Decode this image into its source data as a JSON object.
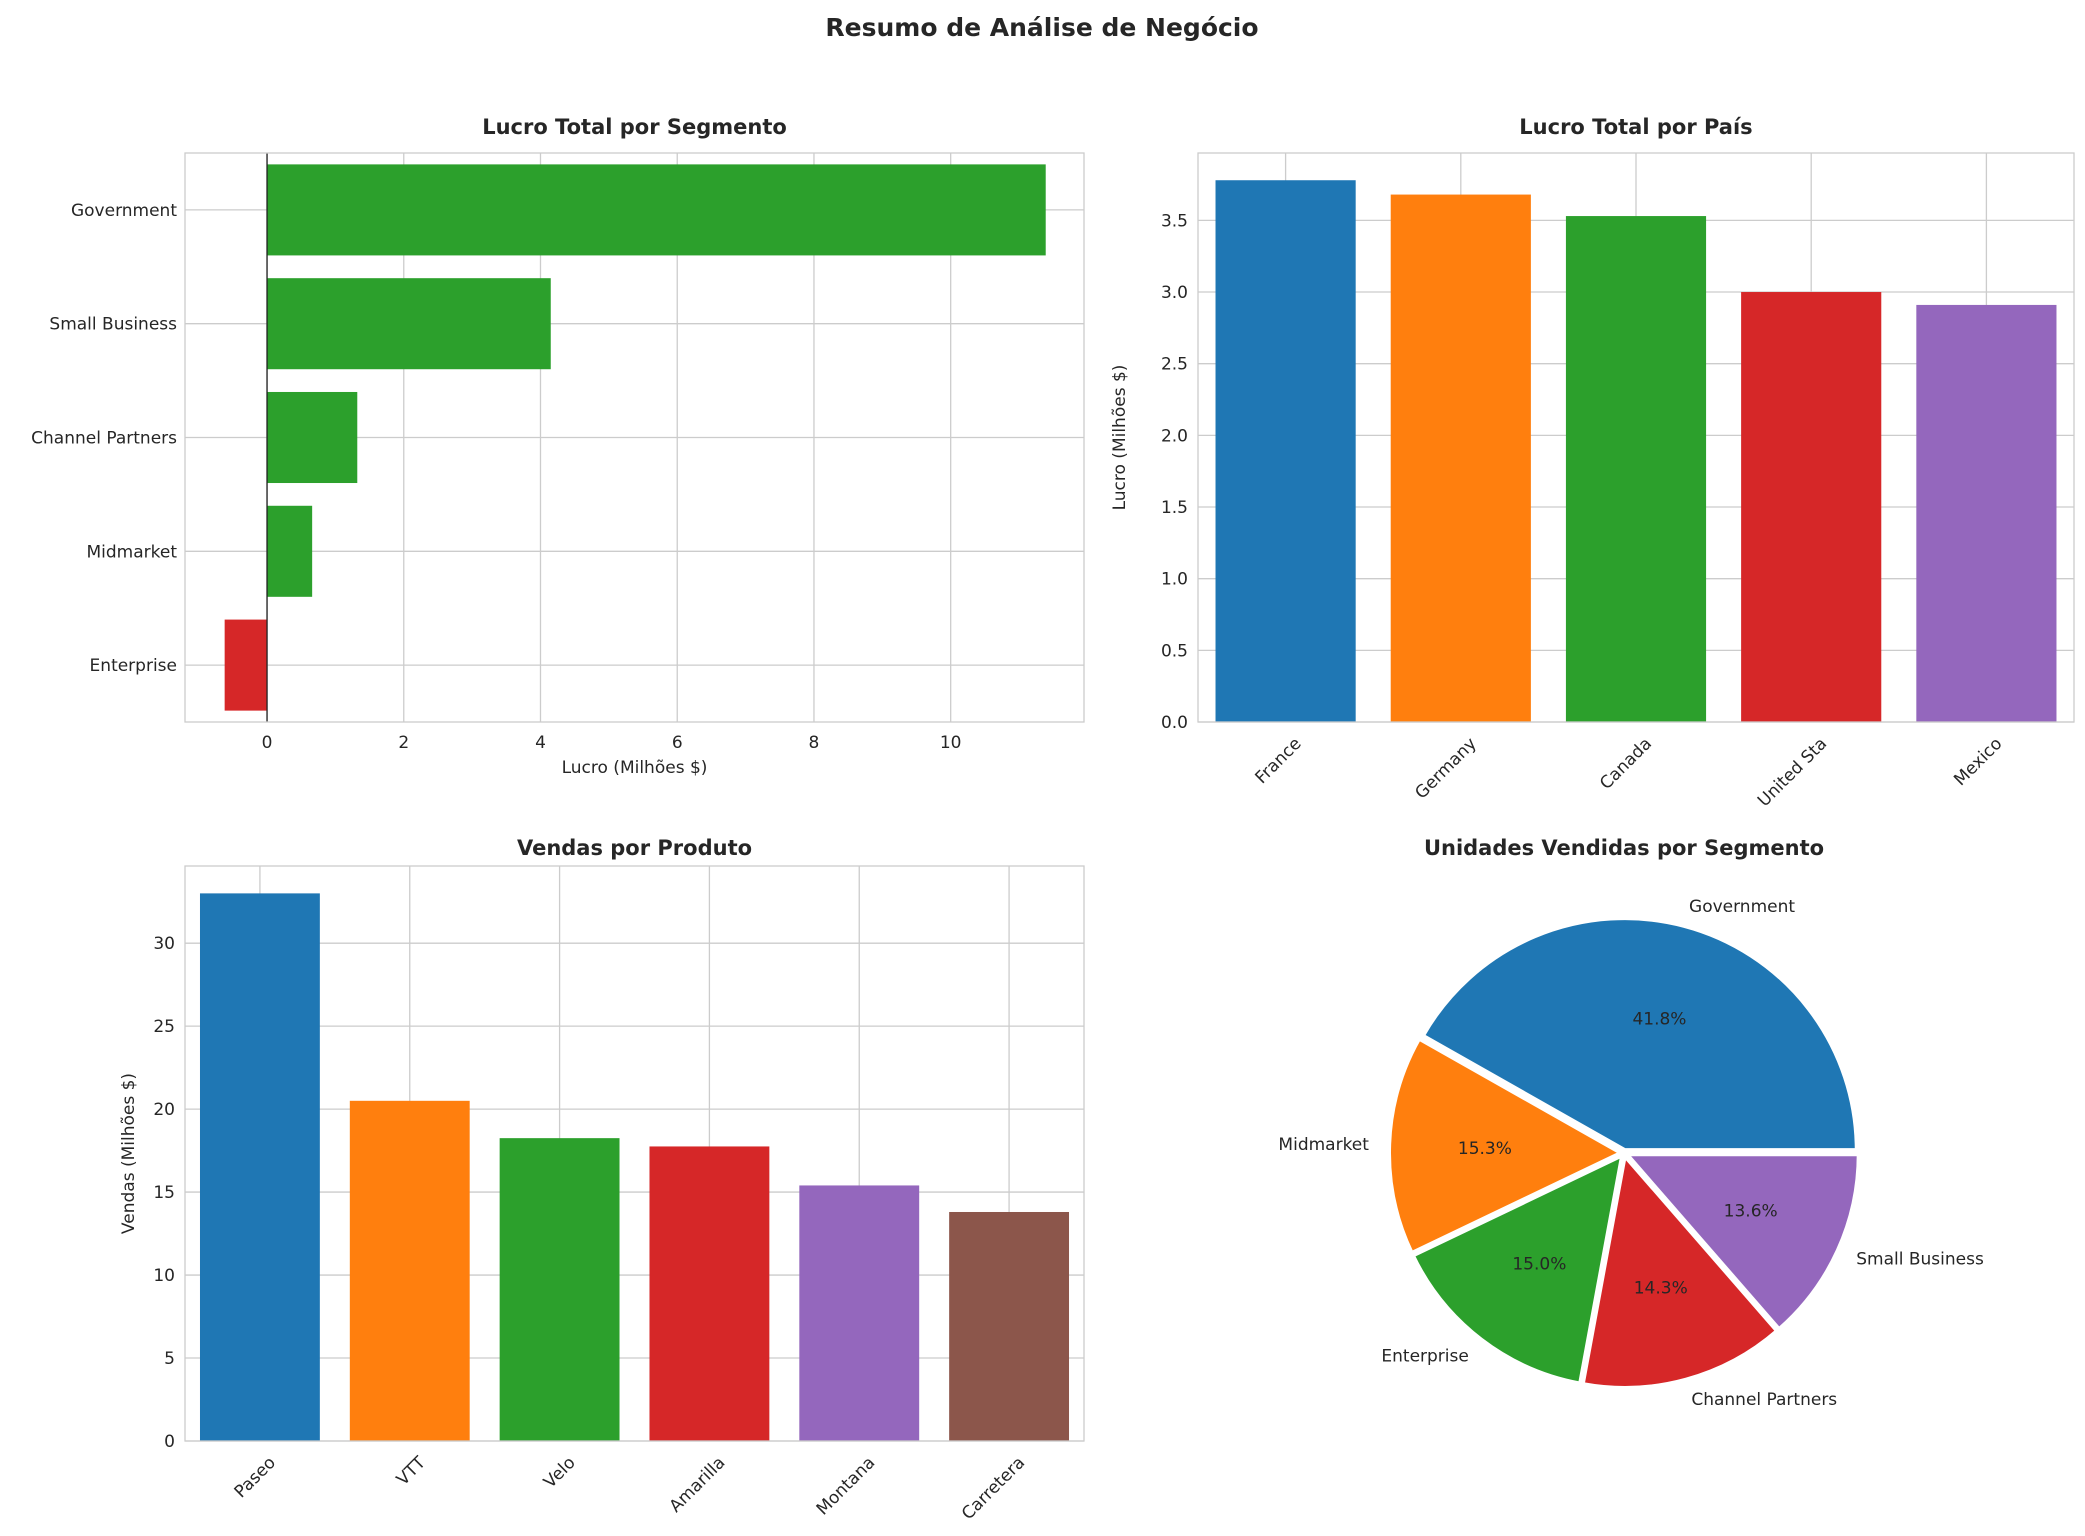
{
  "figure_title": "Resumo de Análise de Negócio",
  "chart_data": [
    {
      "type": "bar",
      "orientation": "horizontal",
      "title": "Lucro Total por Segmento",
      "xlabel": "Lucro (Milhões $)",
      "ylabel": "",
      "categories": [
        "Enterprise",
        "Midmarket",
        "Channel Partners",
        "Small Business",
        "Government"
      ],
      "values": [
        -0.62,
        0.66,
        1.32,
        4.15,
        11.39
      ],
      "xlim": [
        -1.2,
        11.95
      ],
      "xticks": [
        0,
        2,
        4,
        6,
        8,
        10
      ],
      "colors": {
        "positive": "#2ca02c",
        "negative": "#d62728"
      },
      "grid": true
    },
    {
      "type": "bar",
      "title": "Lucro Total por País",
      "xlabel": "",
      "ylabel": "Lucro (Milhões $)",
      "categories": [
        "France",
        "Germany",
        "Canada",
        "United Sta",
        "Mexico"
      ],
      "values": [
        3.78,
        3.68,
        3.53,
        3.0,
        2.91
      ],
      "ylim": [
        0,
        3.97
      ],
      "yticks": [
        "0.0",
        "0.5",
        "1.0",
        "1.5",
        "2.0",
        "2.5",
        "3.0",
        "3.5"
      ],
      "colors": [
        "#1f77b4",
        "#ff7f0e",
        "#2ca02c",
        "#d62728",
        "#9467bd"
      ],
      "grid": true
    },
    {
      "type": "bar",
      "title": "Vendas por Produto",
      "xlabel": "",
      "ylabel": "Vendas (Milhões $)",
      "categories": [
        "Paseo",
        "VTT",
        "Velo",
        "Amarilla",
        "Montana",
        "Carretera"
      ],
      "values": [
        33.0,
        20.5,
        18.25,
        17.75,
        15.4,
        13.8
      ],
      "ylim": [
        0,
        34.65
      ],
      "yticks": [
        0,
        5,
        10,
        15,
        20,
        25,
        30
      ],
      "colors": [
        "#1f77b4",
        "#ff7f0e",
        "#2ca02c",
        "#d62728",
        "#9467bd",
        "#8c564b"
      ],
      "grid": true
    },
    {
      "type": "pie",
      "title": "Unidades Vendidas por Segmento",
      "labels": [
        "Government",
        "Midmarket",
        "Enterprise",
        "Channel Partners",
        "Small Business"
      ],
      "values": [
        41.8,
        15.3,
        15.0,
        14.3,
        13.6
      ],
      "value_labels": [
        "41.8%",
        "15.3%",
        "15.0%",
        "14.3%",
        "13.6%"
      ],
      "colors": [
        "#1f77b4",
        "#ff7f0e",
        "#2ca02c",
        "#d62728",
        "#9467bd"
      ]
    }
  ]
}
